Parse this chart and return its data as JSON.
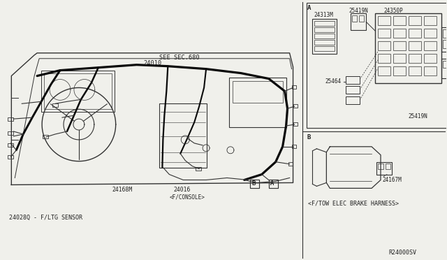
{
  "bg_color": "#f0f0eb",
  "line_color": "#333333",
  "text_color": "#222222",
  "labels": {
    "part_number_top": "24010",
    "see_sec": "SEE SEC.680",
    "part_24168M": "24168M",
    "part_24016": "24016",
    "part_24016_sub": "<F/CONSOLE>",
    "part_24028Q": "24028Q - F/LTG SENSOR",
    "ref_code": "R24000SV",
    "right_title": "<F/TOW ELEC BRAKE HARNESS>",
    "part_24313M": "24313M",
    "part_25419N_top": "25419N",
    "part_24350P": "24350P",
    "part_25464": "25464",
    "part_25419N_bot": "25419N",
    "part_24167M": "24167M"
  }
}
